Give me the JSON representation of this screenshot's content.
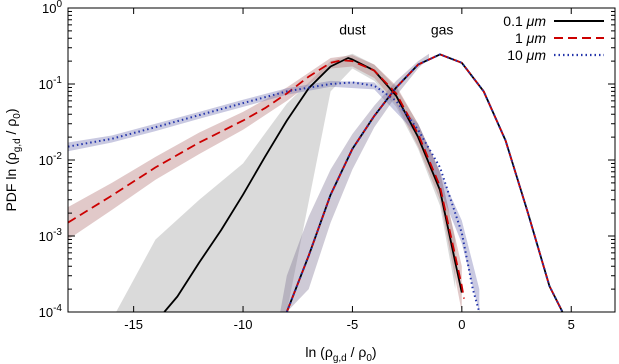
{
  "chart_data": {
    "type": "line",
    "title": "",
    "xlabel": "ln (ρ_{g,d} / ρ_0)",
    "ylabel": "PDF ln (ρ_{g,d} / ρ_0)",
    "xlim": [
      -18,
      7
    ],
    "ylim": [
      0.0001,
      1
    ],
    "y_scale": "log",
    "grid": false,
    "legend_position": "top-right",
    "x_ticks": [
      -15,
      -10,
      -5,
      0,
      5
    ],
    "x_tick_labels": [
      "-15",
      "-10",
      "-5",
      "0",
      "5"
    ],
    "y_ticks": [
      0.0001,
      0.001,
      0.01,
      0.1,
      1
    ],
    "y_tick_labels": [
      {
        "base": "10",
        "exp": "-4"
      },
      {
        "base": "10",
        "exp": "-3"
      },
      {
        "base": "10",
        "exp": "-2"
      },
      {
        "base": "10",
        "exp": "-1"
      },
      {
        "base": "10",
        "exp": "0"
      }
    ],
    "annotations": [
      {
        "text": "dust",
        "x": -5.0,
        "y": 0.45
      },
      {
        "text": "gas",
        "x": -0.9,
        "y": 0.45
      }
    ],
    "series": [
      {
        "name": "0.1 μm",
        "group": "dust",
        "color": "#000000",
        "dash": "solid",
        "x": [
          -13.6,
          -13,
          -12,
          -11,
          -10,
          -9,
          -8,
          -7,
          -6,
          -5.2,
          -5,
          -4,
          -3,
          -2,
          -1,
          -0.3,
          0
        ],
        "y": [
          0.0001,
          0.00016,
          0.00045,
          0.0012,
          0.0035,
          0.011,
          0.033,
          0.088,
          0.17,
          0.22,
          0.21,
          0.15,
          0.07,
          0.02,
          0.004,
          0.00045,
          0.00018
        ]
      },
      {
        "name": "1 μm",
        "group": "dust",
        "color": "#cc0000",
        "dash": "dashed",
        "x": [
          -18,
          -16,
          -14,
          -12,
          -10,
          -9,
          -8,
          -7,
          -6,
          -5.5,
          -5,
          -4,
          -3,
          -2,
          -1,
          0,
          0.1
        ],
        "y": [
          0.0015,
          0.0034,
          0.008,
          0.017,
          0.033,
          0.048,
          0.075,
          0.125,
          0.19,
          0.205,
          0.2,
          0.15,
          0.075,
          0.022,
          0.0045,
          0.00022,
          0.00015
        ]
      },
      {
        "name": "10 μm",
        "group": "dust",
        "color": "#2233aa",
        "dash": "dotted",
        "x": [
          -18,
          -16,
          -14,
          -12,
          -10,
          -8,
          -6,
          -5,
          -4,
          -3,
          -2,
          -1,
          0,
          0.5,
          0.8
        ],
        "y": [
          0.015,
          0.019,
          0.027,
          0.039,
          0.056,
          0.08,
          0.1,
          0.105,
          0.095,
          0.06,
          0.025,
          0.008,
          0.0011,
          0.0002,
          0.0001
        ]
      },
      {
        "name": "0.1 μm",
        "group": "gas",
        "color": "#000000",
        "dash": "solid",
        "x": [
          -8,
          -7,
          -6,
          -5,
          -4,
          -3,
          -2,
          -1,
          0,
          1,
          2,
          3,
          4,
          4.6
        ],
        "y": [
          0.0001,
          0.00055,
          0.0035,
          0.014,
          0.038,
          0.09,
          0.18,
          0.245,
          0.19,
          0.08,
          0.018,
          0.0021,
          0.00022,
          0.0001
        ]
      },
      {
        "name": "1 μm",
        "group": "gas",
        "color": "#cc0000",
        "dash": "dashed",
        "x": [
          -8,
          -7,
          -6,
          -5,
          -4,
          -3,
          -2,
          -1,
          0,
          1,
          2,
          3,
          4,
          4.6
        ],
        "y": [
          0.0001,
          0.00055,
          0.0035,
          0.014,
          0.038,
          0.09,
          0.18,
          0.245,
          0.19,
          0.08,
          0.018,
          0.0021,
          0.00022,
          0.0001
        ]
      },
      {
        "name": "10 μm",
        "group": "gas",
        "color": "#2233aa",
        "dash": "dotted",
        "x": [
          -8,
          -7,
          -6,
          -5,
          -4,
          -3,
          -2,
          -1,
          0,
          1,
          2,
          3,
          4,
          4.6
        ],
        "y": [
          0.0001,
          0.00055,
          0.0035,
          0.014,
          0.038,
          0.09,
          0.18,
          0.245,
          0.19,
          0.08,
          0.018,
          0.0021,
          0.00022,
          0.0001
        ]
      }
    ],
    "bands": [
      {
        "name": "0.1 μm dust spread",
        "color": "#9e9e9e",
        "x": [
          -15.8,
          -14,
          -12,
          -10,
          -8,
          -6,
          -5,
          -4,
          -3,
          -2,
          -1,
          -0.3
        ],
        "y_low": [
          0.0001,
          0.0001,
          0.0001,
          0.0001,
          0.0001,
          0.08,
          0.16,
          0.11,
          0.05,
          0.014,
          0.0025,
          0.0002
        ],
        "y_high": [
          0.0001,
          0.0009,
          0.003,
          0.009,
          0.055,
          0.2,
          0.25,
          0.18,
          0.09,
          0.03,
          0.007,
          0.0009
        ]
      },
      {
        "name": "1 μm dust spread",
        "color": "#b07070",
        "x": [
          -18,
          -16,
          -14,
          -12,
          -10,
          -8,
          -6,
          -5,
          -4,
          -3,
          -2,
          -1,
          0
        ],
        "y_low": [
          0.0009,
          0.0022,
          0.0055,
          0.012,
          0.025,
          0.06,
          0.16,
          0.17,
          0.12,
          0.055,
          0.015,
          0.003,
          0.0001
        ],
        "y_high": [
          0.0024,
          0.005,
          0.011,
          0.023,
          0.043,
          0.09,
          0.22,
          0.24,
          0.18,
          0.095,
          0.03,
          0.007,
          0.0004
        ]
      },
      {
        "name": "10 μm dust spread",
        "color": "#7070b0",
        "x": [
          -18,
          -16,
          -14,
          -12,
          -10,
          -8,
          -6,
          -4,
          -2,
          0,
          0.8
        ],
        "y_low": [
          0.013,
          0.017,
          0.024,
          0.035,
          0.05,
          0.072,
          0.092,
          0.085,
          0.021,
          0.0008,
          0.0001
        ],
        "y_high": [
          0.017,
          0.021,
          0.03,
          0.043,
          0.062,
          0.088,
          0.11,
          0.105,
          0.03,
          0.0016,
          0.0002
        ]
      },
      {
        "name": "gas spread",
        "color": "#7f7494",
        "x": [
          -8.3,
          -8,
          -7,
          -6,
          -5,
          -4,
          -3,
          -2,
          -1.5
        ],
        "y_low": [
          0.0001,
          0.0001,
          0.0002,
          0.0015,
          0.0075,
          0.027,
          0.07,
          0.16,
          0.22
        ],
        "y_high": [
          0.0001,
          0.0003,
          0.0018,
          0.0075,
          0.022,
          0.052,
          0.11,
          0.2,
          0.25
        ]
      }
    ],
    "legend": [
      {
        "label_value": "0.1",
        "label_unit": "μm",
        "color": "#000000",
        "dash": "solid"
      },
      {
        "label_value": "1",
        "label_unit": "μm",
        "color": "#cc0000",
        "dash": "dashed"
      },
      {
        "label_value": "10",
        "label_unit": "μm",
        "color": "#2233aa",
        "dash": "dotted"
      }
    ]
  }
}
